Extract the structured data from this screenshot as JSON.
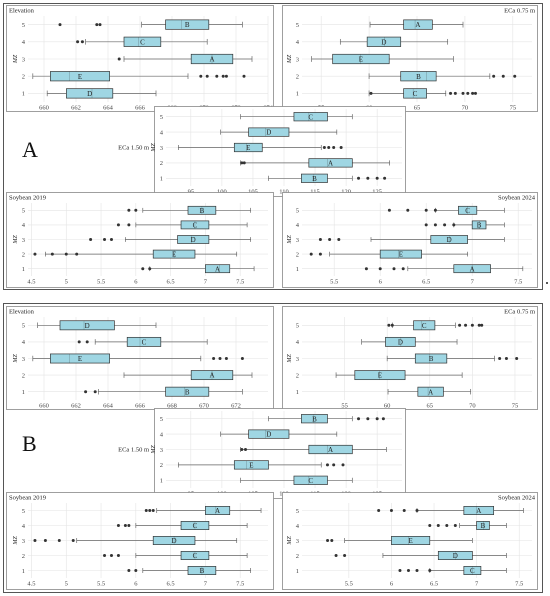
{
  "figure": {
    "panel_labels": [
      "A",
      "B"
    ]
  },
  "colors": {
    "box_fill": "#9fd6e3",
    "box_stroke": "#333333",
    "grid": "#e4e4e4",
    "frame": "#888888"
  },
  "chart_data": [
    {
      "group": "A",
      "type": "boxplot",
      "title": "Elevation",
      "title_pos": "left",
      "xlim": [
        659,
        674
      ],
      "xticks": [
        660,
        662,
        664,
        666,
        668,
        670,
        672,
        674
      ],
      "ylabel": "MZ",
      "yticks": [
        "1",
        "2",
        "3",
        "4",
        "5"
      ],
      "boxes": [
        {
          "zone": "1",
          "label": "D",
          "min": 660.2,
          "q1": 661.4,
          "median": 663.0,
          "q3": 664.3,
          "max": 667.0,
          "outliers": []
        },
        {
          "zone": "2",
          "label": "E",
          "min": 659.3,
          "q1": 660.4,
          "median": 661.6,
          "q3": 664.1,
          "max": 669.0,
          "outliers": [
            669.8,
            670.2,
            670.8,
            671.2,
            671.4,
            672.5
          ]
        },
        {
          "zone": "3",
          "label": "A",
          "min": 665.0,
          "q1": 669.2,
          "median": 670.5,
          "q3": 671.8,
          "max": 673.0,
          "outliers": [
            664.7
          ]
        },
        {
          "zone": "4",
          "label": "C",
          "min": 662.6,
          "q1": 665.0,
          "median": 665.9,
          "q3": 667.3,
          "max": 670.2,
          "outliers": [
            662.1,
            662.4
          ]
        },
        {
          "zone": "5",
          "label": "B",
          "min": 666.1,
          "q1": 667.6,
          "median": 668.6,
          "q3": 670.3,
          "max": 672.4,
          "outliers": [
            661.0,
            663.3,
            663.5
          ]
        }
      ]
    },
    {
      "group": "A",
      "type": "boxplot",
      "title": "ECa 0.75 m",
      "title_pos": "right",
      "xlim": [
        53,
        77
      ],
      "xticks": [
        55,
        60,
        65,
        70,
        75
      ],
      "ylabel": "MZ",
      "yticks": [
        "1",
        "2",
        "3",
        "4",
        "5"
      ],
      "boxes": [
        {
          "zone": "1",
          "label": "C",
          "min": 60.0,
          "q1": 63.6,
          "median": 64.6,
          "q3": 66.0,
          "max": 68.0,
          "outliers": [
            60.2,
            68.5,
            69.0,
            69.8,
            70.3,
            70.8,
            71.1
          ]
        },
        {
          "zone": "2",
          "label": "B",
          "min": 60.0,
          "q1": 63.3,
          "median": 66.0,
          "q3": 67.0,
          "max": 72.6,
          "outliers": [
            73.0,
            74.0,
            75.2
          ]
        },
        {
          "zone": "3",
          "label": "E",
          "min": 54.0,
          "q1": 56.2,
          "median": 59.1,
          "q3": 62.1,
          "max": 68.8,
          "outliers": []
        },
        {
          "zone": "4",
          "label": "D",
          "min": 57.0,
          "q1": 59.8,
          "median": 61.6,
          "q3": 63.3,
          "max": 68.2,
          "outliers": []
        },
        {
          "zone": "5",
          "label": "A",
          "min": 60.1,
          "q1": 63.6,
          "median": 64.8,
          "q3": 66.6,
          "max": 69.8,
          "outliers": []
        }
      ]
    },
    {
      "group": "A",
      "type": "boxplot",
      "title": "ECa 1.50 m",
      "title_pos": "side",
      "xlim": [
        91,
        129
      ],
      "xticks": [
        95,
        100,
        105,
        110,
        115,
        120,
        125
      ],
      "ylabel": "MZ",
      "yticks": [
        "1",
        "2",
        "3",
        "4",
        "5"
      ],
      "boxes": [
        {
          "zone": "1",
          "label": "B",
          "min": 107.5,
          "q1": 112.8,
          "median": 114.8,
          "q3": 117.0,
          "max": 121.0,
          "outliers": [
            122.0,
            123.5,
            125.0,
            126.2
          ]
        },
        {
          "zone": "2",
          "label": "A",
          "min": 103.0,
          "q1": 114.0,
          "median": 117.0,
          "q3": 121.0,
          "max": 127.0,
          "outliers": [
            103.2,
            103.6
          ]
        },
        {
          "zone": "3",
          "label": "E",
          "min": 93.0,
          "q1": 102.0,
          "median": 104.0,
          "q3": 106.5,
          "max": 116.0,
          "outliers": [
            116.5,
            117.2,
            118.0,
            119.2
          ]
        },
        {
          "zone": "4",
          "label": "D",
          "min": 99.8,
          "q1": 104.3,
          "median": 107.0,
          "q3": 110.8,
          "max": 118.5,
          "outliers": []
        },
        {
          "zone": "5",
          "label": "C",
          "min": 103.0,
          "q1": 111.6,
          "median": 114.0,
          "q3": 117.0,
          "max": 121.0,
          "outliers": []
        }
      ]
    },
    {
      "group": "A",
      "type": "boxplot",
      "title": "Soybean 2019",
      "title_pos": "left",
      "xlim": [
        4.45,
        7.9
      ],
      "xticks": [
        4.5,
        5.0,
        5.5,
        6.0,
        6.5,
        7.0,
        7.5
      ],
      "ylabel": "MZ",
      "yticks": [
        "1",
        "2",
        "3",
        "4",
        "5"
      ],
      "boxes": [
        {
          "zone": "1",
          "label": "A",
          "min": 6.2,
          "q1": 7.0,
          "median": 7.2,
          "q3": 7.35,
          "max": 7.7,
          "outliers": [
            6.1,
            6.2
          ]
        },
        {
          "zone": "2",
          "label": "E",
          "min": 4.7,
          "q1": 6.25,
          "median": 6.55,
          "q3": 6.85,
          "max": 7.45,
          "outliers": [
            4.55,
            4.8,
            5.0,
            5.15
          ]
        },
        {
          "zone": "3",
          "label": "D",
          "min": 5.85,
          "q1": 6.6,
          "median": 6.8,
          "q3": 7.05,
          "max": 7.65,
          "outliers": [
            5.35,
            5.55,
            5.65
          ]
        },
        {
          "zone": "4",
          "label": "C",
          "min": 6.0,
          "q1": 6.65,
          "median": 6.85,
          "q3": 7.05,
          "max": 7.6,
          "outliers": [
            5.75,
            5.9
          ]
        },
        {
          "zone": "5",
          "label": "B",
          "min": 6.1,
          "q1": 6.75,
          "median": 6.95,
          "q3": 7.15,
          "max": 7.65,
          "outliers": [
            5.9,
            6.0
          ]
        }
      ]
    },
    {
      "group": "A",
      "type": "boxplot",
      "title": "Soybean 2024",
      "title_pos": "right",
      "xlim": [
        5.15,
        7.65
      ],
      "xticks": [
        5.5,
        6.0,
        6.5,
        7.0,
        7.5
      ],
      "ylabel": "MZ",
      "yticks": [
        "1",
        "2",
        "3",
        "4",
        "5"
      ],
      "boxes": [
        {
          "zone": "1",
          "label": "A",
          "min": 6.3,
          "q1": 6.8,
          "median": 7.0,
          "q3": 7.2,
          "max": 7.55,
          "outliers": [
            5.85,
            6.0,
            6.15,
            6.25
          ]
        },
        {
          "zone": "2",
          "label": "E",
          "min": 5.45,
          "q1": 6.0,
          "median": 6.2,
          "q3": 6.45,
          "max": 6.95,
          "outliers": [
            5.25,
            5.35
          ]
        },
        {
          "zone": "3",
          "label": "D",
          "min": 5.9,
          "q1": 6.55,
          "median": 6.75,
          "q3": 6.95,
          "max": 7.35,
          "outliers": [
            5.35,
            5.45,
            5.55
          ]
        },
        {
          "zone": "4",
          "label": "B",
          "min": 6.8,
          "q1": 7.0,
          "median": 7.08,
          "q3": 7.15,
          "max": 7.35,
          "outliers": [
            6.5,
            6.6,
            6.7,
            6.8
          ]
        },
        {
          "zone": "5",
          "label": "C",
          "min": 6.6,
          "q1": 6.85,
          "median": 6.95,
          "q3": 7.05,
          "max": 7.35,
          "outliers": [
            6.1,
            6.3,
            6.5,
            6.6
          ]
        }
      ]
    },
    {
      "group": "B",
      "type": "boxplot",
      "title": "Elevation",
      "title_pos": "left",
      "xlim": [
        659,
        674
      ],
      "xticks": [
        660,
        662,
        664,
        666,
        668,
        670,
        672
      ],
      "ylabel": "MZ",
      "yticks": [
        "1",
        "2",
        "3",
        "4",
        "5"
      ],
      "boxes": [
        {
          "zone": "1",
          "label": "B",
          "min": 663.4,
          "q1": 667.6,
          "median": 668.8,
          "q3": 670.3,
          "max": 672.4,
          "outliers": [
            662.6,
            663.2
          ]
        },
        {
          "zone": "2",
          "label": "A",
          "min": 665.0,
          "q1": 669.2,
          "median": 670.5,
          "q3": 671.8,
          "max": 673.0,
          "outliers": []
        },
        {
          "zone": "3",
          "label": "E",
          "min": 659.3,
          "q1": 660.4,
          "median": 661.6,
          "q3": 664.1,
          "max": 669.8,
          "outliers": [
            670.6,
            671.0,
            671.4,
            672.4
          ]
        },
        {
          "zone": "4",
          "label": "C",
          "min": 663.2,
          "q1": 665.2,
          "median": 666.0,
          "q3": 667.3,
          "max": 670.2,
          "outliers": [
            662.2,
            662.7
          ]
        },
        {
          "zone": "5",
          "label": "D",
          "min": 659.6,
          "q1": 661.0,
          "median": 662.5,
          "q3": 664.4,
          "max": 667.0,
          "outliers": []
        }
      ]
    },
    {
      "group": "B",
      "type": "boxplot",
      "title": "ECa 0.75 m",
      "title_pos": "right",
      "xlim": [
        50,
        77
      ],
      "xticks": [
        55,
        60,
        65,
        70,
        75
      ],
      "ylabel": "MZ",
      "yticks": [
        "1",
        "2",
        "3",
        "4",
        "5"
      ],
      "boxes": [
        {
          "zone": "1",
          "label": "A",
          "min": 60.1,
          "q1": 63.6,
          "median": 64.8,
          "q3": 66.6,
          "max": 69.8,
          "outliers": []
        },
        {
          "zone": "2",
          "label": "E",
          "min": 54.0,
          "q1": 56.2,
          "median": 59.1,
          "q3": 62.1,
          "max": 68.8,
          "outliers": []
        },
        {
          "zone": "3",
          "label": "B",
          "min": 60.0,
          "q1": 63.3,
          "median": 65.0,
          "q3": 67.0,
          "max": 72.6,
          "outliers": [
            73.2,
            74.0,
            75.2
          ]
        },
        {
          "zone": "4",
          "label": "D",
          "min": 57.0,
          "q1": 59.8,
          "median": 61.6,
          "q3": 63.3,
          "max": 68.2,
          "outliers": []
        },
        {
          "zone": "5",
          "label": "C",
          "min": 60.6,
          "q1": 63.1,
          "median": 64.0,
          "q3": 65.6,
          "max": 68.0,
          "outliers": [
            60.2,
            60.6,
            68.5,
            69.2,
            70.0,
            70.8,
            71.1
          ]
        }
      ]
    },
    {
      "group": "B",
      "type": "boxplot",
      "title": "ECa 1.50 m",
      "title_pos": "side",
      "xlim": [
        91,
        129
      ],
      "xticks": [
        95,
        100,
        105,
        110,
        115,
        120,
        125
      ],
      "ylabel": "MZ",
      "yticks": [
        "1",
        "2",
        "3",
        "4",
        "5"
      ],
      "boxes": [
        {
          "zone": "1",
          "label": "C",
          "min": 103.0,
          "q1": 111.6,
          "median": 114.0,
          "q3": 117.0,
          "max": 121.0,
          "outliers": []
        },
        {
          "zone": "2",
          "label": "E",
          "min": 93.0,
          "q1": 102.0,
          "median": 104.0,
          "q3": 107.5,
          "max": 116.0,
          "outliers": [
            117.0,
            118.0,
            119.5
          ]
        },
        {
          "zone": "3",
          "label": "A",
          "min": 103.0,
          "q1": 114.0,
          "median": 117.0,
          "q3": 121.0,
          "max": 126.5,
          "outliers": [
            103.2,
            103.8
          ]
        },
        {
          "zone": "4",
          "label": "D",
          "min": 99.8,
          "q1": 104.3,
          "median": 107.0,
          "q3": 110.8,
          "max": 118.5,
          "outliers": []
        },
        {
          "zone": "5",
          "label": "B",
          "min": 107.5,
          "q1": 112.8,
          "median": 114.8,
          "q3": 117.0,
          "max": 121.0,
          "outliers": [
            122.0,
            123.5,
            125.0,
            126.0
          ]
        }
      ]
    },
    {
      "group": "B",
      "type": "boxplot",
      "title": "Soybean 2019",
      "title_pos": "left",
      "xlim": [
        4.45,
        7.9
      ],
      "xticks": [
        4.5,
        5.0,
        5.5,
        6.0,
        6.5,
        7.0,
        7.5
      ],
      "ylabel": "MZ",
      "yticks": [
        "1",
        "2",
        "3",
        "4",
        "5"
      ],
      "boxes": [
        {
          "zone": "1",
          "label": "B",
          "min": 6.1,
          "q1": 6.75,
          "median": 6.95,
          "q3": 7.15,
          "max": 7.65,
          "outliers": [
            5.9,
            6.0
          ]
        },
        {
          "zone": "2",
          "label": "C",
          "min": 6.0,
          "q1": 6.65,
          "median": 6.85,
          "q3": 7.05,
          "max": 7.6,
          "outliers": [
            5.55,
            5.65,
            5.75
          ]
        },
        {
          "zone": "3",
          "label": "D",
          "min": 5.15,
          "q1": 6.25,
          "median": 6.55,
          "q3": 6.85,
          "max": 7.45,
          "outliers": [
            4.55,
            4.7,
            4.9,
            5.1
          ]
        },
        {
          "zone": "4",
          "label": "C",
          "min": 6.0,
          "q1": 6.65,
          "median": 6.85,
          "q3": 7.05,
          "max": 7.6,
          "outliers": [
            5.75,
            5.85,
            5.9
          ]
        },
        {
          "zone": "5",
          "label": "A",
          "min": 6.3,
          "q1": 7.0,
          "median": 7.15,
          "q3": 7.35,
          "max": 7.8,
          "outliers": [
            6.15,
            6.2,
            6.25
          ]
        }
      ]
    },
    {
      "group": "B",
      "type": "boxplot",
      "title": "Soybean 2024",
      "title_pos": "right",
      "xlim": [
        4.95,
        7.65
      ],
      "xticks": [
        5.5,
        6.0,
        6.5,
        7.0,
        7.5
      ],
      "ylabel": "MZ",
      "yticks": [
        "1",
        "2",
        "3",
        "4",
        "5"
      ],
      "boxes": [
        {
          "zone": "1",
          "label": "C",
          "min": 6.45,
          "q1": 6.85,
          "median": 6.95,
          "q3": 7.05,
          "max": 7.35,
          "outliers": [
            6.1,
            6.2,
            6.3,
            6.45
          ]
        },
        {
          "zone": "2",
          "label": "D",
          "min": 5.9,
          "q1": 6.55,
          "median": 6.75,
          "q3": 6.95,
          "max": 7.35,
          "outliers": [
            5.35,
            5.45
          ]
        },
        {
          "zone": "3",
          "label": "E",
          "min": 5.45,
          "q1": 6.0,
          "median": 6.2,
          "q3": 6.45,
          "max": 6.95,
          "outliers": [
            5.25,
            5.3
          ]
        },
        {
          "zone": "4",
          "label": "B",
          "min": 6.8,
          "q1": 7.0,
          "median": 7.08,
          "q3": 7.15,
          "max": 7.35,
          "outliers": [
            6.45,
            6.55,
            6.65,
            6.75
          ]
        },
        {
          "zone": "5",
          "label": "A",
          "min": 6.3,
          "q1": 6.85,
          "median": 7.0,
          "q3": 7.2,
          "max": 7.55,
          "outliers": [
            5.85,
            6.0,
            6.15,
            6.3
          ]
        }
      ]
    }
  ]
}
